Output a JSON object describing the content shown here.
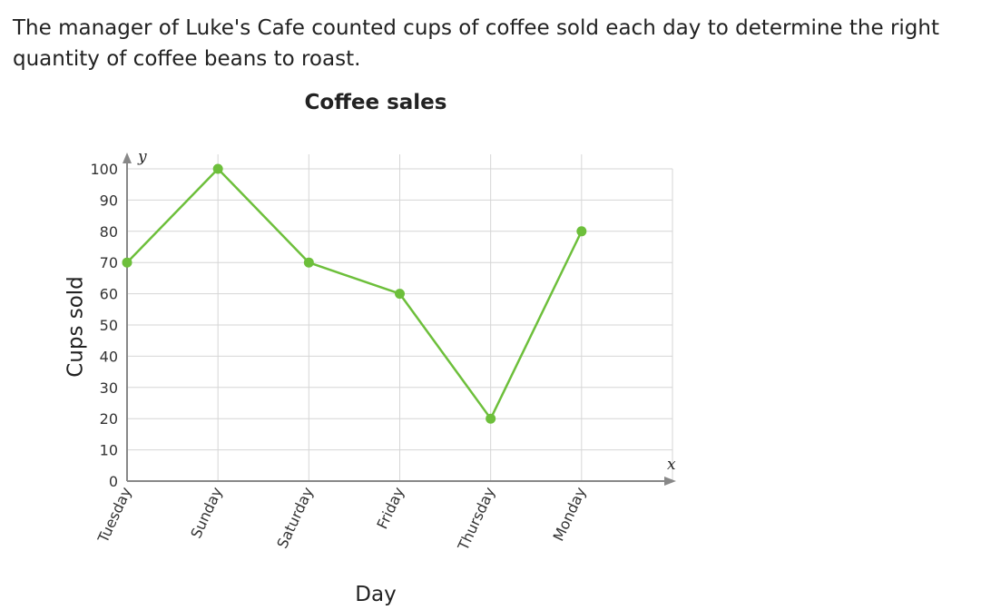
{
  "problem": {
    "text": "The manager of Luke's Cafe counted cups of coffee sold each day to determine the right quantity of coffee beans to roast."
  },
  "chart_data": {
    "type": "line",
    "title": "Coffee sales",
    "xlabel": "Day",
    "ylabel": "Cups sold",
    "x_axis_letter": "x",
    "y_axis_letter": "y",
    "categories": [
      "Tuesday",
      "Sunday",
      "Saturday",
      "Friday",
      "Thursday",
      "Monday"
    ],
    "values": [
      70,
      100,
      70,
      60,
      20,
      80
    ],
    "ylim": [
      0,
      100
    ],
    "yticks": [
      0,
      10,
      20,
      30,
      40,
      50,
      60,
      70,
      80,
      90,
      100
    ],
    "grid": true,
    "legend": "none",
    "colors": {
      "line": "#6dbf3b",
      "point": "#6dbf3b",
      "grid": "#d6d6d6",
      "axis": "#888888"
    }
  }
}
